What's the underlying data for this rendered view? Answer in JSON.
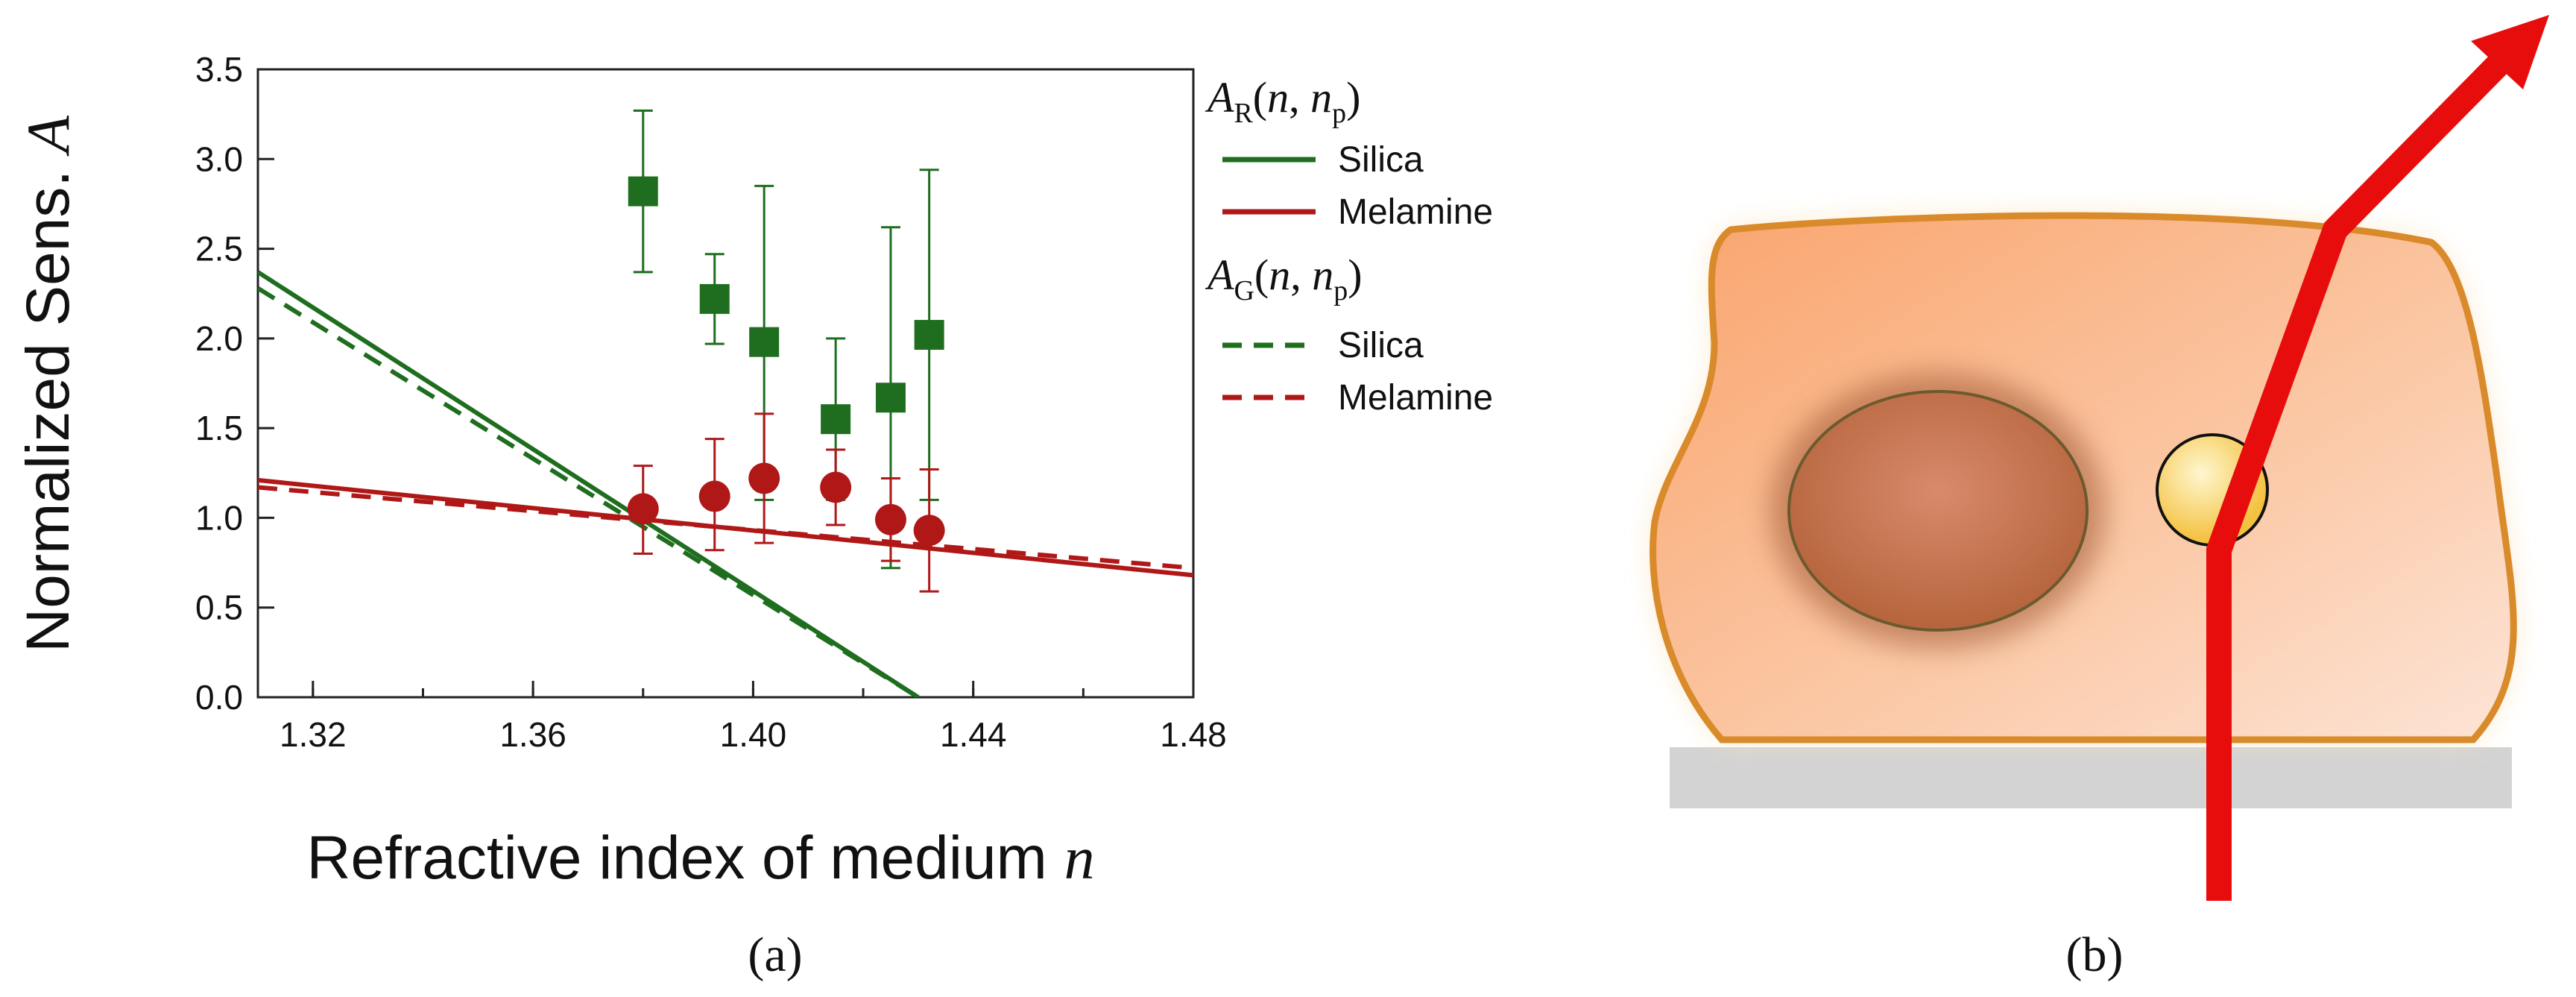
{
  "chart_data": {
    "type": "scatter",
    "xlabel": "Refractive index of medium",
    "xlabel_var": "n",
    "ylabel": "Normalized Sens.",
    "ylabel_var": "A",
    "xlim": [
      1.31,
      1.48
    ],
    "ylim": [
      0.0,
      3.5
    ],
    "x_ticks": [
      "1.32",
      "1.36",
      "1.40",
      "1.44",
      "1.48"
    ],
    "y_ticks": [
      "0.0",
      "0.5",
      "1.0",
      "1.5",
      "2.0",
      "2.5",
      "3.0",
      "3.5"
    ],
    "legend": {
      "group_r": {
        "symbol": "A",
        "sub": "R",
        "args_pre": "(",
        "n": "n",
        "comma": ", ",
        "np": "n",
        "np_sub": "p",
        "args_post": ")"
      },
      "group_g": {
        "symbol": "A",
        "sub": "G",
        "args_pre": "(",
        "n": "n",
        "comma": ", ",
        "np": "n",
        "np_sub": "p",
        "args_post": ")"
      },
      "silica_solid": "Silica",
      "melamine_solid": "Melamine",
      "silica_dashed": "Silica",
      "melamine_dashed": "Melamine"
    },
    "lines": [
      {
        "name": "AR Silica",
        "style": "solid",
        "color": "#1f6e1f",
        "x": [
          1.31,
          1.43
        ],
        "y": [
          2.37,
          0.0
        ]
      },
      {
        "name": "AR Melamine",
        "style": "solid",
        "color": "#b01818",
        "x": [
          1.31,
          1.48
        ],
        "y": [
          1.21,
          0.68
        ]
      },
      {
        "name": "AG Silica",
        "style": "dashed",
        "color": "#1f6e1f",
        "x": [
          1.31,
          1.43
        ],
        "y": [
          2.28,
          0.0
        ]
      },
      {
        "name": "AG Melamine",
        "style": "dashed",
        "color": "#b01818",
        "x": [
          1.31,
          1.48
        ],
        "y": [
          1.17,
          0.72
        ]
      }
    ],
    "series": [
      {
        "name": "Silica measured",
        "marker": "square",
        "color": "#1f6e1f",
        "x": [
          1.38,
          1.393,
          1.402,
          1.415,
          1.425,
          1.432
        ],
        "y": [
          2.82,
          2.22,
          1.98,
          1.55,
          1.67,
          2.02
        ],
        "err_low": [
          2.37,
          1.97,
          1.1,
          1.1,
          0.72,
          1.1
        ],
        "err_high": [
          3.27,
          2.47,
          2.85,
          2.0,
          2.62,
          2.94
        ]
      },
      {
        "name": "Melamine measured",
        "marker": "circle",
        "color": "#b01818",
        "x": [
          1.38,
          1.393,
          1.402,
          1.415,
          1.425,
          1.432
        ],
        "y": [
          1.05,
          1.12,
          1.22,
          1.17,
          0.99,
          0.93
        ],
        "err_low": [
          0.8,
          0.82,
          0.86,
          0.96,
          0.76,
          0.59
        ],
        "err_high": [
          1.29,
          1.44,
          1.58,
          1.38,
          1.22,
          1.27
        ]
      }
    ]
  },
  "panel_labels": {
    "a": "(a)",
    "b": "(b)"
  },
  "illustration": {
    "cell_fill": "#f9b88d",
    "cell_outline": "#d98a2a",
    "nucleus_fill": "#c47346",
    "particle_fill": "#f7cf59",
    "substrate_fill": "#d3d3d3",
    "beam_color": "#e80d0d",
    "icons": [
      "cell",
      "nucleus",
      "particle",
      "substrate",
      "laser-beam-arrow"
    ]
  }
}
